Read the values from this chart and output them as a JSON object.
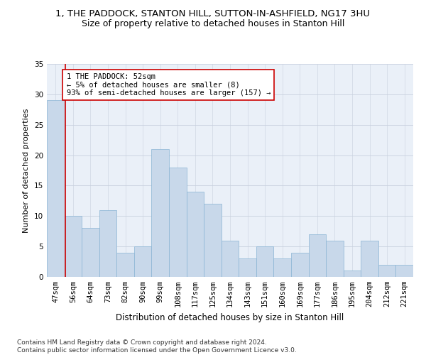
{
  "title": "1, THE PADDOCK, STANTON HILL, SUTTON-IN-ASHFIELD, NG17 3HU",
  "subtitle": "Size of property relative to detached houses in Stanton Hill",
  "xlabel": "Distribution of detached houses by size in Stanton Hill",
  "ylabel": "Number of detached properties",
  "bar_color": "#c8d8ea",
  "bar_edge_color": "#8ab4d4",
  "grid_color": "#c8d0de",
  "bg_color": "#eaf0f8",
  "categories": [
    "47sqm",
    "56sqm",
    "64sqm",
    "73sqm",
    "82sqm",
    "90sqm",
    "99sqm",
    "108sqm",
    "117sqm",
    "125sqm",
    "134sqm",
    "143sqm",
    "151sqm",
    "160sqm",
    "169sqm",
    "177sqm",
    "186sqm",
    "195sqm",
    "204sqm",
    "212sqm",
    "221sqm"
  ],
  "values": [
    29,
    10,
    8,
    11,
    4,
    5,
    21,
    18,
    14,
    12,
    6,
    3,
    5,
    3,
    4,
    7,
    6,
    1,
    6,
    2,
    2
  ],
  "property_line_color": "#cc0000",
  "annotation_text": "1 THE PADDOCK: 52sqm\n← 5% of detached houses are smaller (8)\n93% of semi-detached houses are larger (157) →",
  "annotation_box_color": "#ffffff",
  "annotation_border_color": "#cc0000",
  "ylim": [
    0,
    35
  ],
  "yticks": [
    0,
    5,
    10,
    15,
    20,
    25,
    30,
    35
  ],
  "footnote": "Contains HM Land Registry data © Crown copyright and database right 2024.\nContains public sector information licensed under the Open Government Licence v3.0.",
  "title_fontsize": 9.5,
  "subtitle_fontsize": 9,
  "xlabel_fontsize": 8.5,
  "ylabel_fontsize": 8,
  "tick_fontsize": 7.5,
  "annotation_fontsize": 7.5,
  "footnote_fontsize": 6.5
}
